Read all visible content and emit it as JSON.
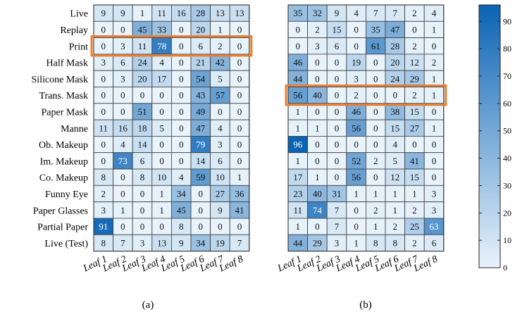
{
  "chart_data": [
    {
      "type": "heatmap",
      "label": "(a)",
      "rows": [
        "Live",
        "Replay",
        "Print",
        "Half Mask",
        "Silicone Mask",
        "Trans. Mask",
        "Paper Mask",
        "Manne",
        "Ob. Makeup",
        "Im. Makeup",
        "Co. Makeup",
        "Funny Eye",
        "Paper Glasses",
        "Partial Paper",
        "Live (Test)"
      ],
      "columns": [
        "Leaf 1",
        "Leaf 2",
        "Leaf 3",
        "Leaf 4",
        "Leaf 5",
        "Leaf 6",
        "Leaf 7",
        "Leaf 8"
      ],
      "values": [
        [
          9,
          9,
          1,
          11,
          16,
          28,
          13,
          13
        ],
        [
          0,
          0,
          45,
          33,
          0,
          20,
          1,
          0
        ],
        [
          0,
          3,
          11,
          78,
          0,
          6,
          2,
          0
        ],
        [
          3,
          6,
          24,
          4,
          0,
          21,
          42,
          0
        ],
        [
          0,
          3,
          20,
          17,
          0,
          54,
          5,
          0
        ],
        [
          0,
          0,
          0,
          0,
          0,
          43,
          57,
          0
        ],
        [
          0,
          0,
          51,
          0,
          0,
          49,
          0,
          0
        ],
        [
          11,
          16,
          18,
          5,
          0,
          47,
          4,
          0
        ],
        [
          0,
          4,
          14,
          0,
          0,
          79,
          3,
          0
        ],
        [
          0,
          73,
          6,
          0,
          0,
          14,
          6,
          0
        ],
        [
          8,
          0,
          8,
          10,
          4,
          59,
          10,
          1
        ],
        [
          2,
          0,
          0,
          1,
          34,
          0,
          27,
          36
        ],
        [
          3,
          1,
          0,
          1,
          45,
          0,
          9,
          41
        ],
        [
          91,
          0,
          0,
          0,
          8,
          0,
          0,
          0
        ],
        [
          8,
          7,
          3,
          13,
          9,
          34,
          19,
          7
        ]
      ],
      "highlighted_row": "Print"
    },
    {
      "type": "heatmap",
      "label": "(b)",
      "rows": [
        "Live",
        "Replay",
        "Print",
        "Half Mask",
        "Silicone Mask",
        "Trans. Mask",
        "Paper Mask",
        "Manne",
        "Ob. Makeup",
        "Im. Makeup",
        "Co. Makeup",
        "Funny Eye",
        "Paper Glasses",
        "Partial Paper",
        "Live (Test)"
      ],
      "columns": [
        "Leaf 1",
        "Leaf 2",
        "Leaf 3",
        "Leaf 4",
        "Leaf 5",
        "Leaf 6",
        "Leaf 7",
        "Leaf 8"
      ],
      "values": [
        [
          35,
          32,
          9,
          4,
          7,
          7,
          2,
          4
        ],
        [
          0,
          2,
          15,
          0,
          35,
          47,
          0,
          1
        ],
        [
          0,
          3,
          6,
          0,
          61,
          28,
          2,
          0
        ],
        [
          46,
          0,
          0,
          19,
          0,
          20,
          12,
          2
        ],
        [
          44,
          0,
          0,
          3,
          0,
          24,
          29,
          1
        ],
        [
          56,
          40,
          0,
          2,
          0,
          0,
          2,
          1
        ],
        [
          1,
          0,
          0,
          46,
          0,
          38,
          15,
          0
        ],
        [
          1,
          1,
          0,
          56,
          0,
          15,
          27,
          1
        ],
        [
          96,
          0,
          0,
          0,
          0,
          4,
          0,
          0
        ],
        [
          1,
          0,
          0,
          52,
          2,
          5,
          41,
          0
        ],
        [
          17,
          1,
          0,
          56,
          0,
          12,
          15,
          0
        ],
        [
          23,
          40,
          31,
          1,
          1,
          1,
          1,
          3
        ],
        [
          11,
          74,
          7,
          0,
          2,
          1,
          2,
          3
        ],
        [
          1,
          0,
          7,
          0,
          1,
          2,
          25,
          63
        ],
        [
          44,
          29,
          3,
          1,
          8,
          8,
          2,
          6
        ]
      ],
      "highlighted_row": "Trans. Mask"
    }
  ],
  "colorbar": {
    "min": 0,
    "max": 96,
    "ticks": [
      "0",
      "10",
      "20",
      "30",
      "40",
      "50",
      "60",
      "70",
      "80",
      "90"
    ],
    "color_low": "#e8f3fb",
    "color_high": "#0b63b4"
  },
  "colors": {
    "highlight": "#ea7d2f",
    "grid": "#3a3a3a"
  }
}
